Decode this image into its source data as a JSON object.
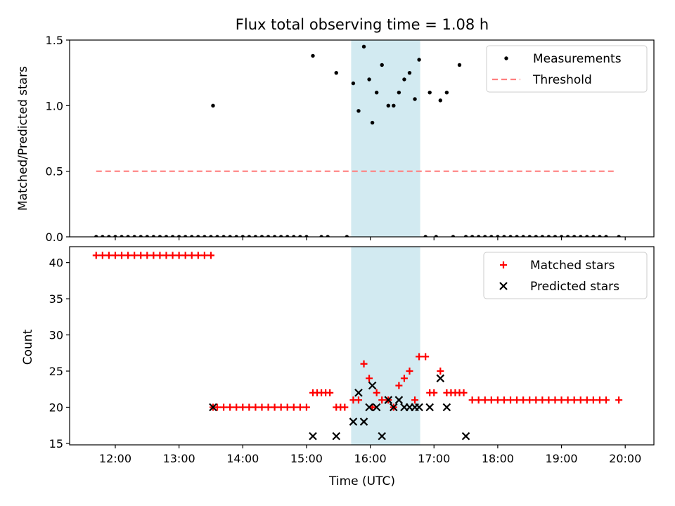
{
  "figure": {
    "title": "Flux total observing time = 1.08 h"
  },
  "chart_data": [
    {
      "type": "scatter",
      "ylabel": "Matched/Predicted stars",
      "xlabel": "",
      "xlim": [
        "11:17",
        "20:27"
      ],
      "ylim": [
        0,
        1.5
      ],
      "yticks": [
        0.0,
        0.5,
        1.0,
        1.5
      ],
      "ytick_labels": [
        "0.0",
        "0.5",
        "1.0",
        "1.5"
      ],
      "grid": false,
      "legend_placement": "top-right",
      "shaded_interval": {
        "start": "15:42",
        "end": "16:47",
        "color": "#add8e6"
      },
      "series": [
        {
          "name": "Measurements",
          "kind": "points",
          "color": "#000000",
          "points": [
            [
              "11:42",
              0
            ],
            [
              "11:48",
              0
            ],
            [
              "11:54",
              0
            ],
            [
              "12:00",
              0
            ],
            [
              "12:06",
              0
            ],
            [
              "12:12",
              0
            ],
            [
              "12:18",
              0
            ],
            [
              "12:24",
              0
            ],
            [
              "12:30",
              0
            ],
            [
              "12:36",
              0
            ],
            [
              "12:42",
              0
            ],
            [
              "12:48",
              0
            ],
            [
              "12:54",
              0
            ],
            [
              "13:00",
              0
            ],
            [
              "13:06",
              0
            ],
            [
              "13:12",
              0
            ],
            [
              "13:18",
              0
            ],
            [
              "13:24",
              0
            ],
            [
              "13:30",
              0
            ],
            [
              "13:32",
              1.0
            ],
            [
              "13:36",
              0
            ],
            [
              "13:42",
              0
            ],
            [
              "13:48",
              0
            ],
            [
              "13:54",
              0
            ],
            [
              "14:00",
              0
            ],
            [
              "14:06",
              0
            ],
            [
              "14:12",
              0
            ],
            [
              "14:18",
              0
            ],
            [
              "14:24",
              0
            ],
            [
              "14:30",
              0
            ],
            [
              "14:36",
              0
            ],
            [
              "14:42",
              0
            ],
            [
              "14:48",
              0
            ],
            [
              "14:54",
              0
            ],
            [
              "15:00",
              0
            ],
            [
              "15:06",
              1.38
            ],
            [
              "15:14",
              0
            ],
            [
              "15:20",
              0
            ],
            [
              "15:28",
              1.25
            ],
            [
              "15:38",
              0
            ],
            [
              "15:44",
              1.17
            ],
            [
              "15:49",
              0.96
            ],
            [
              "15:54",
              1.45
            ],
            [
              "15:59",
              1.2
            ],
            [
              "16:02",
              0.87
            ],
            [
              "16:06",
              1.1
            ],
            [
              "16:11",
              1.31
            ],
            [
              "16:17",
              1.0
            ],
            [
              "16:22",
              1.0
            ],
            [
              "16:27",
              1.1
            ],
            [
              "16:32",
              1.2
            ],
            [
              "16:37",
              1.25
            ],
            [
              "16:42",
              1.05
            ],
            [
              "16:46",
              1.35
            ],
            [
              "16:52",
              0
            ],
            [
              "16:56",
              1.1
            ],
            [
              "17:02",
              0
            ],
            [
              "17:06",
              1.04
            ],
            [
              "17:12",
              1.1
            ],
            [
              "17:18",
              0
            ],
            [
              "17:30",
              0
            ],
            [
              "17:36",
              0
            ],
            [
              "17:42",
              0
            ],
            [
              "17:48",
              0
            ],
            [
              "17:54",
              0
            ],
            [
              "18:00",
              0
            ],
            [
              "18:06",
              0
            ],
            [
              "18:12",
              0
            ],
            [
              "18:18",
              0
            ],
            [
              "18:24",
              0
            ],
            [
              "18:30",
              0
            ],
            [
              "18:36",
              0
            ],
            [
              "18:42",
              0
            ],
            [
              "18:48",
              0
            ],
            [
              "18:54",
              0
            ],
            [
              "19:00",
              0
            ],
            [
              "19:06",
              0
            ],
            [
              "19:12",
              0
            ],
            [
              "19:18",
              0
            ],
            [
              "19:24",
              0
            ],
            [
              "19:30",
              0
            ],
            [
              "19:36",
              0
            ],
            [
              "19:42",
              0
            ],
            [
              "17:24",
              1.31
            ],
            [
              "19:54",
              0
            ]
          ]
        },
        {
          "name": "Threshold",
          "kind": "dashed-line",
          "color": "#ff7f7f",
          "points": [
            [
              "11:42",
              0.5
            ],
            [
              "19:50",
              0.5
            ]
          ]
        }
      ]
    },
    {
      "type": "scatter",
      "ylabel": "Count",
      "xlabel": "Time (UTC)",
      "xlim": [
        "11:17",
        "20:27"
      ],
      "ylim": [
        14.8,
        42.2
      ],
      "yticks": [
        15,
        20,
        25,
        30,
        35,
        40
      ],
      "ytick_labels": [
        "15",
        "20",
        "25",
        "30",
        "35",
        "40"
      ],
      "xticks": [
        "12:00",
        "13:00",
        "14:00",
        "15:00",
        "16:00",
        "17:00",
        "18:00",
        "19:00",
        "20:00"
      ],
      "xtick_labels": [
        "12:00",
        "13:00",
        "14:00",
        "15:00",
        "16:00",
        "17:00",
        "18:00",
        "19:00",
        "20:00"
      ],
      "grid": false,
      "legend_placement": "top-right",
      "shaded_interval": {
        "start": "15:42",
        "end": "16:47",
        "color": "#add8e6"
      },
      "series": [
        {
          "name": "Matched stars",
          "kind": "plus",
          "color": "#ff0000",
          "points": [
            [
              "11:42",
              41
            ],
            [
              "11:48",
              41
            ],
            [
              "11:54",
              41
            ],
            [
              "12:00",
              41
            ],
            [
              "12:06",
              41
            ],
            [
              "12:12",
              41
            ],
            [
              "12:18",
              41
            ],
            [
              "12:24",
              41
            ],
            [
              "12:30",
              41
            ],
            [
              "12:36",
              41
            ],
            [
              "12:42",
              41
            ],
            [
              "12:48",
              41
            ],
            [
              "12:54",
              41
            ],
            [
              "13:00",
              41
            ],
            [
              "13:06",
              41
            ],
            [
              "13:12",
              41
            ],
            [
              "13:18",
              41
            ],
            [
              "13:24",
              41
            ],
            [
              "13:30",
              41
            ],
            [
              "13:32",
              20
            ],
            [
              "13:36",
              20
            ],
            [
              "13:42",
              20
            ],
            [
              "13:48",
              20
            ],
            [
              "13:54",
              20
            ],
            [
              "14:00",
              20
            ],
            [
              "14:06",
              20
            ],
            [
              "14:12",
              20
            ],
            [
              "14:18",
              20
            ],
            [
              "14:24",
              20
            ],
            [
              "14:30",
              20
            ],
            [
              "14:36",
              20
            ],
            [
              "14:42",
              20
            ],
            [
              "14:48",
              20
            ],
            [
              "14:54",
              20
            ],
            [
              "15:00",
              20
            ],
            [
              "15:06",
              22
            ],
            [
              "15:10",
              22
            ],
            [
              "15:14",
              22
            ],
            [
              "15:18",
              22
            ],
            [
              "15:22",
              22
            ],
            [
              "15:28",
              20
            ],
            [
              "15:32",
              20
            ],
            [
              "15:36",
              20
            ],
            [
              "15:44",
              21
            ],
            [
              "15:49",
              21
            ],
            [
              "15:54",
              26
            ],
            [
              "15:59",
              24
            ],
            [
              "16:02",
              20
            ],
            [
              "16:06",
              22
            ],
            [
              "16:11",
              21
            ],
            [
              "16:17",
              21
            ],
            [
              "16:22",
              20
            ],
            [
              "16:27",
              23
            ],
            [
              "16:32",
              24
            ],
            [
              "16:37",
              25
            ],
            [
              "16:42",
              21
            ],
            [
              "16:46",
              27
            ],
            [
              "16:52",
              27
            ],
            [
              "16:56",
              22
            ],
            [
              "17:00",
              22
            ],
            [
              "17:06",
              25
            ],
            [
              "17:12",
              22
            ],
            [
              "17:16",
              22
            ],
            [
              "17:20",
              22
            ],
            [
              "17:24",
              22
            ],
            [
              "17:28",
              22
            ],
            [
              "17:36",
              21
            ],
            [
              "17:42",
              21
            ],
            [
              "17:48",
              21
            ],
            [
              "17:54",
              21
            ],
            [
              "18:00",
              21
            ],
            [
              "18:06",
              21
            ],
            [
              "18:12",
              21
            ],
            [
              "18:18",
              21
            ],
            [
              "18:24",
              21
            ],
            [
              "18:30",
              21
            ],
            [
              "18:36",
              21
            ],
            [
              "18:42",
              21
            ],
            [
              "18:48",
              21
            ],
            [
              "18:54",
              21
            ],
            [
              "19:00",
              21
            ],
            [
              "19:06",
              21
            ],
            [
              "19:12",
              21
            ],
            [
              "19:18",
              21
            ],
            [
              "19:24",
              21
            ],
            [
              "19:30",
              21
            ],
            [
              "19:36",
              21
            ],
            [
              "19:42",
              21
            ],
            [
              "19:54",
              21
            ]
          ]
        },
        {
          "name": "Predicted stars",
          "kind": "x",
          "color": "#000000",
          "points": [
            [
              "13:32",
              20
            ],
            [
              "15:06",
              16
            ],
            [
              "15:28",
              16
            ],
            [
              "15:44",
              18
            ],
            [
              "15:49",
              22
            ],
            [
              "15:54",
              18
            ],
            [
              "15:59",
              20
            ],
            [
              "16:02",
              23
            ],
            [
              "16:06",
              20
            ],
            [
              "16:11",
              16
            ],
            [
              "16:17",
              21
            ],
            [
              "16:22",
              20
            ],
            [
              "16:27",
              21
            ],
            [
              "16:32",
              20
            ],
            [
              "16:37",
              20
            ],
            [
              "16:42",
              20
            ],
            [
              "16:46",
              20
            ],
            [
              "16:56",
              20
            ],
            [
              "17:06",
              24
            ],
            [
              "17:12",
              20
            ],
            [
              "17:30",
              16
            ]
          ]
        }
      ]
    }
  ]
}
